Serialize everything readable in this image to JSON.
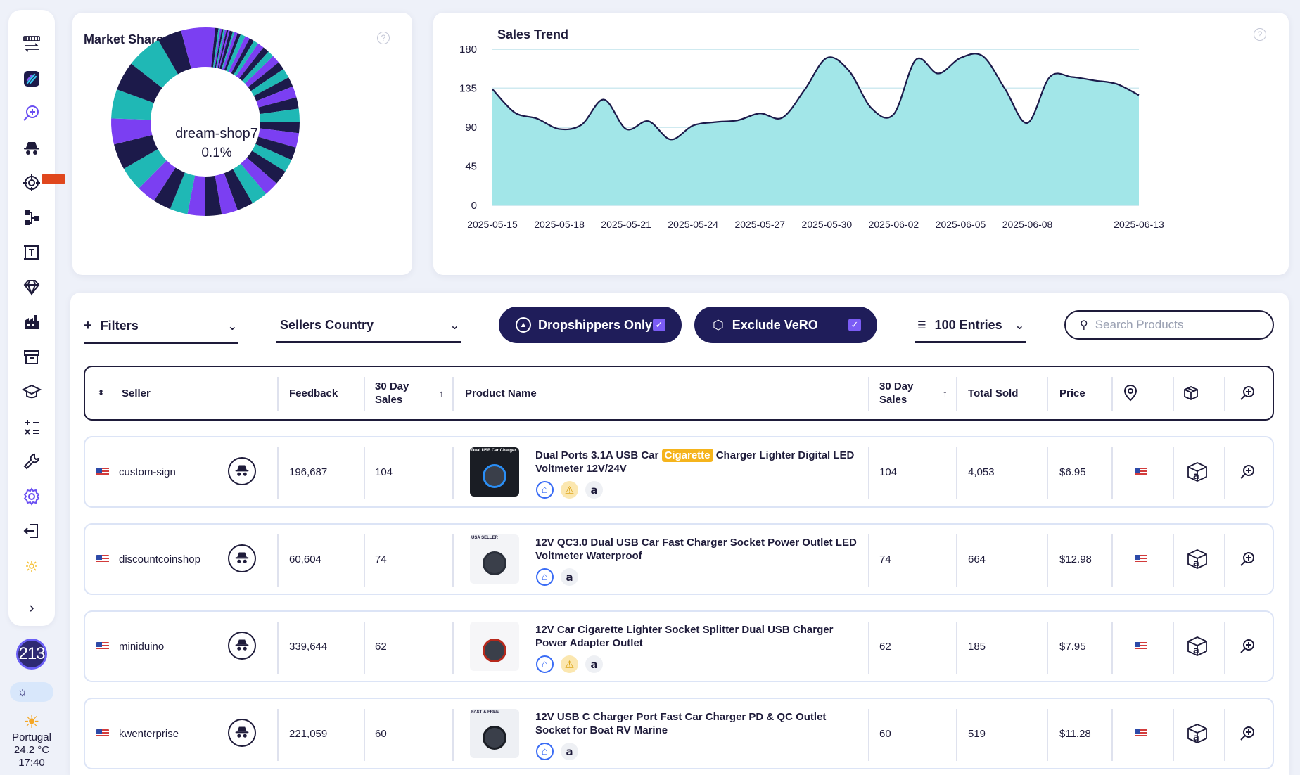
{
  "sidebar": {
    "items": [
      {
        "icon": "store-transfer-icon"
      },
      {
        "icon": "brand-logo-icon"
      },
      {
        "icon": "product-search-icon"
      },
      {
        "icon": "competitor-spy-icon"
      },
      {
        "icon": "target-icon"
      },
      {
        "icon": "hierarchy-icon"
      },
      {
        "icon": "title-builder-icon"
      },
      {
        "icon": "diamond-icon"
      },
      {
        "icon": "factory-icon"
      },
      {
        "icon": "archive-icon"
      },
      {
        "icon": "academy-icon"
      },
      {
        "icon": "calculator-icon"
      },
      {
        "icon": "tools-icon"
      },
      {
        "icon": "settings-icon"
      },
      {
        "icon": "logout-icon"
      },
      {
        "icon": "sun-small-icon"
      }
    ],
    "count_bubble": "213",
    "weather": {
      "location": "Portugal",
      "temp": "24.2 °C",
      "time": "17:40"
    }
  },
  "market_share": {
    "title": "Market Share",
    "center_label": "dream-shop7",
    "center_value": "0.1%",
    "colors": {
      "violet": "#7b3ff2",
      "teal": "#1fb8b5",
      "navy": "#1c1a4a"
    }
  },
  "chart_data": {
    "type": "area",
    "title": "Sales Trend",
    "x": [
      "2025-05-15",
      "2025-05-16",
      "2025-05-17",
      "2025-05-18",
      "2025-05-19",
      "2025-05-20",
      "2025-05-21",
      "2025-05-22",
      "2025-05-23",
      "2025-05-24",
      "2025-05-25",
      "2025-05-26",
      "2025-05-27",
      "2025-05-28",
      "2025-05-29",
      "2025-05-30",
      "2025-05-31",
      "2025-06-01",
      "2025-06-02",
      "2025-06-03",
      "2025-06-04",
      "2025-06-05",
      "2025-06-06",
      "2025-06-07",
      "2025-06-08",
      "2025-06-09",
      "2025-06-10",
      "2025-06-11",
      "2025-06-12",
      "2025-06-13"
    ],
    "values": [
      134,
      107,
      100,
      88,
      93,
      122,
      88,
      97,
      76,
      92,
      96,
      98,
      106,
      101,
      133,
      170,
      155,
      112,
      105,
      168,
      152,
      170,
      172,
      134,
      95,
      148,
      148,
      144,
      140,
      127
    ],
    "x_ticks": [
      "2025-05-15",
      "2025-05-18",
      "2025-05-21",
      "2025-05-24",
      "2025-05-27",
      "2025-05-30",
      "2025-06-02",
      "2025-06-05",
      "2025-06-08",
      "2025-06-13"
    ],
    "y_ticks": [
      "0",
      "45",
      "90",
      "135",
      "180"
    ],
    "ylim": [
      0,
      180
    ],
    "grid": true,
    "fill_color": "#a2e6e8",
    "line_color": "#1c1a4a"
  },
  "toolbar": {
    "filters_label": "Filters",
    "sellers_country_label": "Sellers Country",
    "dropshippers_label": "Dropshippers Only",
    "exclude_vero_label": "Exclude VeRO",
    "entries_label": "100 Entries",
    "search_placeholder": "Search Products"
  },
  "table": {
    "headers": {
      "seller": "Seller",
      "feedback": "Feedback",
      "sales30_a": "30 Day",
      "sales30_b": "Sales",
      "product_name": "Product Name",
      "sales30b_a": "30 Day",
      "sales30b_b": "Sales",
      "total_sold": "Total Sold",
      "price": "Price"
    },
    "rows": [
      {
        "seller": "custom-sign",
        "feedback": "196,687",
        "sales30": "104",
        "name_pre": "Dual Ports 3.1A USB Car ",
        "name_hl": "Cigarette",
        "name_post": " Charger Lighter Digital LED Voltmeter 12V/24V",
        "sales30b": "104",
        "total_sold": "4,053",
        "price": "$6.95",
        "warn": true
      },
      {
        "seller": "discountcoinshop",
        "feedback": "60,604",
        "sales30": "74",
        "name_pre": "12V QC3.0 Dual USB Car Fast Charger Socket Power Outlet LED Voltmeter Waterproof",
        "name_hl": "",
        "name_post": "",
        "sales30b": "74",
        "total_sold": "664",
        "price": "$12.98",
        "warn": false
      },
      {
        "seller": "miniduino",
        "feedback": "339,644",
        "sales30": "62",
        "name_pre": "12V Car Cigarette Lighter Socket Splitter Dual USB Charger Power Adapter Outlet",
        "name_hl": "",
        "name_post": "",
        "sales30b": "62",
        "total_sold": "185",
        "price": "$7.95",
        "warn": true
      },
      {
        "seller": "kwenterprise",
        "feedback": "221,059",
        "sales30": "60",
        "name_pre": "12V USB C Charger Port Fast Car Charger PD & QC Outlet Socket for Boat RV Marine",
        "name_hl": "",
        "name_post": "",
        "sales30b": "60",
        "total_sold": "519",
        "price": "$11.28",
        "warn": false
      }
    ],
    "thumb_labels": [
      "Dual USB Car Charger",
      "USA SELLER",
      "",
      "FAST & FREE"
    ]
  }
}
